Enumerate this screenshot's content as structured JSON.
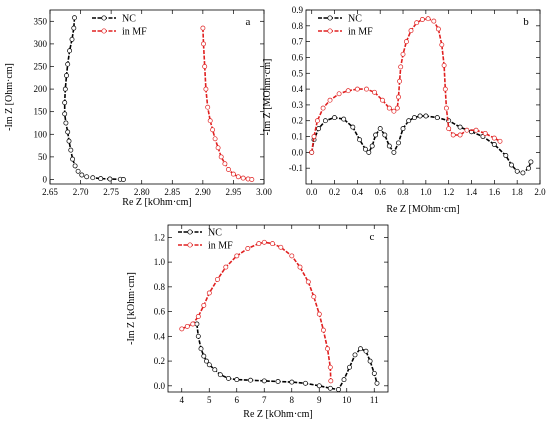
{
  "chart_data": [
    {
      "type": "line",
      "panel_label": "a",
      "xlabel": "Re Z [kOhm·cm]",
      "ylabel": "-Im Z [Ohm·cm]",
      "xlim": [
        2.65,
        3.0
      ],
      "ylim": [
        -10,
        375
      ],
      "xticks": [
        2.65,
        2.7,
        2.75,
        2.8,
        2.85,
        2.9,
        2.95,
        3.0
      ],
      "xticklabels": [
        "2.65",
        "2.70",
        "2.75",
        "2.80",
        "2.85",
        "2.90",
        "2.95",
        "3.00"
      ],
      "yticks": [
        0,
        50,
        100,
        150,
        200,
        250,
        300,
        350
      ],
      "yticklabels": [
        "0",
        "50",
        "100",
        "150",
        "200",
        "250",
        "300",
        "350"
      ],
      "legend_position": "top-center",
      "series": [
        {
          "name": "NC",
          "color": "#000000",
          "x": [
            2.69,
            2.689,
            2.686,
            2.682,
            2.679,
            2.677,
            2.675,
            2.674,
            2.674,
            2.676,
            2.679,
            2.681,
            2.684,
            2.687,
            2.691,
            2.696,
            2.702,
            2.71,
            2.72,
            2.733,
            2.748,
            2.765,
            2.77
          ],
          "y": [
            358,
            335,
            310,
            285,
            255,
            230,
            200,
            170,
            145,
            125,
            105,
            85,
            65,
            45,
            30,
            18,
            10,
            6,
            4,
            2,
            1,
            0.5,
            0
          ]
        },
        {
          "name": "in MF",
          "color": "#e02020",
          "x": [
            2.9,
            2.901,
            2.903,
            2.905,
            2.908,
            2.912,
            2.916,
            2.92,
            2.925,
            2.93,
            2.936,
            2.942,
            2.95,
            2.958,
            2.966,
            2.974,
            2.98
          ],
          "y": [
            335,
            300,
            250,
            200,
            160,
            130,
            110,
            90,
            70,
            50,
            35,
            22,
            12,
            6,
            3,
            1,
            0
          ]
        }
      ]
    },
    {
      "type": "line",
      "panel_label": "b",
      "xlabel": "Re Z [MOhm·cm]",
      "ylabel": "-Im Z [MOhm·cm]",
      "xlim": [
        -0.05,
        2.0
      ],
      "ylim": [
        -0.2,
        0.9
      ],
      "xticks": [
        0.0,
        0.2,
        0.4,
        0.6,
        0.8,
        1.0,
        1.2,
        1.4,
        1.6,
        1.8,
        2.0
      ],
      "xticklabels": [
        "0.0",
        "0.2",
        "0.4",
        "0.6",
        "0.8",
        "1.0",
        "1.2",
        "1.4",
        "1.6",
        "1.8",
        "2.0"
      ],
      "yticks": [
        -0.1,
        0.0,
        0.1,
        0.2,
        0.3,
        0.4,
        0.5,
        0.6,
        0.7,
        0.8,
        0.9
      ],
      "yticklabels": [
        "-0.1",
        "0.0",
        "0.1",
        "0.2",
        "0.3",
        "0.4",
        "0.5",
        "0.6",
        "0.7",
        "0.8",
        "0.9"
      ],
      "legend_position": "top-left",
      "series": [
        {
          "name": "NC",
          "color": "#000000",
          "x": [
            0.0,
            0.02,
            0.06,
            0.12,
            0.2,
            0.28,
            0.36,
            0.42,
            0.47,
            0.5,
            0.53,
            0.56,
            0.6,
            0.64,
            0.68,
            0.72,
            0.76,
            0.8,
            0.85,
            0.9,
            0.95,
            1.0,
            1.1,
            1.2,
            1.3,
            1.4,
            1.5,
            1.6,
            1.7,
            1.75,
            1.8,
            1.85,
            1.9,
            1.92
          ],
          "y": [
            0.0,
            0.08,
            0.15,
            0.2,
            0.22,
            0.21,
            0.16,
            0.08,
            0.02,
            0.0,
            0.04,
            0.11,
            0.15,
            0.11,
            0.04,
            0.0,
            0.06,
            0.15,
            0.2,
            0.22,
            0.23,
            0.23,
            0.22,
            0.2,
            0.16,
            0.13,
            0.1,
            0.05,
            -0.02,
            -0.08,
            -0.12,
            -0.13,
            -0.1,
            -0.06
          ]
        },
        {
          "name": "in MF",
          "color": "#e02020",
          "x": [
            0.0,
            0.02,
            0.05,
            0.1,
            0.16,
            0.24,
            0.32,
            0.4,
            0.48,
            0.55,
            0.62,
            0.68,
            0.72,
            0.75,
            0.76,
            0.77,
            0.78,
            0.8,
            0.83,
            0.87,
            0.92,
            0.97,
            1.02,
            1.07,
            1.11,
            1.14,
            1.16,
            1.17,
            1.18,
            1.2,
            1.24,
            1.3,
            1.36,
            1.44,
            1.52,
            1.6,
            1.65
          ],
          "y": [
            0.0,
            0.1,
            0.2,
            0.28,
            0.33,
            0.37,
            0.39,
            0.4,
            0.4,
            0.38,
            0.33,
            0.28,
            0.26,
            0.28,
            0.35,
            0.45,
            0.54,
            0.62,
            0.7,
            0.77,
            0.82,
            0.84,
            0.845,
            0.83,
            0.78,
            0.68,
            0.55,
            0.4,
            0.28,
            0.15,
            0.11,
            0.11,
            0.14,
            0.14,
            0.12,
            0.09,
            0.07
          ]
        }
      ]
    },
    {
      "type": "line",
      "panel_label": "c",
      "xlabel": "Re Z [kOhm·cm]",
      "ylabel": "-Im Z [kOhm·cm]",
      "xlim": [
        3.5,
        11.5
      ],
      "ylim": [
        -0.05,
        1.3
      ],
      "xticks": [
        4,
        5,
        6,
        7,
        8,
        9,
        10,
        11
      ],
      "xticklabels": [
        "4",
        "5",
        "6",
        "7",
        "8",
        "9",
        "10",
        "11"
      ],
      "yticks": [
        0.0,
        0.2,
        0.4,
        0.6,
        0.8,
        1.0,
        1.2
      ],
      "yticklabels": [
        "0.0",
        "0.2",
        "0.4",
        "0.6",
        "0.8",
        "1.0",
        "1.2"
      ],
      "legend_position": "top-left",
      "series": [
        {
          "name": "NC",
          "color": "#000000",
          "x": [
            4.55,
            4.6,
            4.7,
            4.8,
            4.9,
            5.0,
            5.2,
            5.4,
            5.7,
            6.0,
            6.5,
            7.0,
            7.5,
            8.0,
            8.5,
            9.0,
            9.4,
            9.7,
            9.9,
            10.1,
            10.3,
            10.5,
            10.7,
            10.85,
            11.0,
            11.1
          ],
          "y": [
            0.5,
            0.4,
            0.3,
            0.24,
            0.2,
            0.17,
            0.13,
            0.09,
            0.06,
            0.05,
            0.045,
            0.04,
            0.035,
            0.03,
            0.02,
            0.0,
            -0.02,
            -0.03,
            0.05,
            0.15,
            0.25,
            0.3,
            0.28,
            0.2,
            0.1,
            0.02
          ]
        },
        {
          "name": "in MF",
          "color": "#e02020",
          "x": [
            4.0,
            4.2,
            4.4,
            4.6,
            4.8,
            5.0,
            5.3,
            5.6,
            6.0,
            6.4,
            6.8,
            7.0,
            7.3,
            7.6,
            8.0,
            8.3,
            8.6,
            8.8,
            9.0,
            9.15,
            9.3,
            9.4,
            9.42
          ],
          "y": [
            0.46,
            0.48,
            0.5,
            0.56,
            0.65,
            0.75,
            0.86,
            0.96,
            1.05,
            1.11,
            1.15,
            1.16,
            1.15,
            1.12,
            1.05,
            0.96,
            0.84,
            0.72,
            0.58,
            0.45,
            0.3,
            0.15,
            0.04
          ]
        }
      ]
    }
  ]
}
